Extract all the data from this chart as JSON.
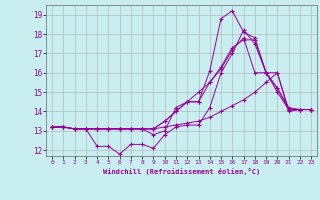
{
  "xlabel": "Windchill (Refroidissement éolien,°C)",
  "bg_color": "#c8eef0",
  "line_color": "#990099",
  "grid_color": "#b0b0b0",
  "xlim": [
    -0.5,
    23.5
  ],
  "ylim": [
    11.7,
    19.5
  ],
  "xticks": [
    0,
    1,
    2,
    3,
    4,
    5,
    6,
    7,
    8,
    9,
    10,
    11,
    12,
    13,
    14,
    15,
    16,
    17,
    18,
    19,
    20,
    21,
    22,
    23
  ],
  "yticks": [
    12,
    13,
    14,
    15,
    16,
    17,
    18,
    19
  ],
  "lines": [
    {
      "x": [
        0,
        1,
        2,
        3,
        4,
        5,
        6,
        7,
        8,
        9,
        10,
        11,
        12,
        13,
        14,
        15,
        16,
        17,
        18,
        19,
        20,
        21,
        22,
        23
      ],
      "y": [
        13.2,
        13.2,
        13.1,
        13.1,
        13.1,
        13.1,
        13.1,
        13.1,
        13.1,
        12.8,
        13.0,
        14.2,
        14.5,
        14.5,
        16.1,
        18.8,
        19.2,
        18.1,
        17.8,
        16.0,
        15.2,
        14.1,
        14.1,
        14.1
      ]
    },
    {
      "x": [
        0,
        1,
        2,
        3,
        4,
        5,
        6,
        7,
        8,
        9,
        10,
        11,
        12,
        13,
        14,
        15,
        16,
        17,
        18,
        19,
        20,
        21,
        22,
        23
      ],
      "y": [
        13.2,
        13.2,
        13.1,
        13.1,
        13.1,
        13.1,
        13.1,
        13.1,
        13.1,
        13.1,
        13.5,
        14.0,
        14.5,
        15.0,
        15.5,
        16.3,
        17.3,
        17.7,
        17.7,
        16.0,
        15.0,
        14.1,
        14.1,
        14.1
      ]
    },
    {
      "x": [
        0,
        1,
        2,
        3,
        4,
        5,
        6,
        7,
        8,
        9,
        10,
        11,
        12,
        13,
        14,
        15,
        16,
        17,
        18,
        19,
        20,
        21,
        22,
        23
      ],
      "y": [
        13.2,
        13.2,
        13.1,
        13.1,
        13.1,
        13.1,
        13.1,
        13.1,
        13.1,
        13.1,
        13.5,
        14.0,
        14.5,
        14.5,
        15.5,
        16.2,
        17.2,
        17.8,
        16.0,
        16.0,
        16.0,
        14.1,
        14.1,
        14.1
      ]
    },
    {
      "x": [
        0,
        1,
        2,
        3,
        4,
        5,
        6,
        7,
        8,
        9,
        10,
        11,
        12,
        13,
        14,
        15,
        16,
        17,
        18,
        19,
        20,
        21,
        22,
        23
      ],
      "y": [
        13.2,
        13.2,
        13.1,
        13.1,
        12.2,
        12.2,
        11.8,
        12.3,
        12.3,
        12.1,
        12.8,
        13.2,
        13.3,
        13.3,
        14.2,
        16.0,
        17.0,
        18.2,
        17.5,
        16.0,
        15.2,
        14.2,
        14.1,
        14.1
      ]
    },
    {
      "x": [
        0,
        1,
        2,
        3,
        4,
        5,
        6,
        7,
        8,
        9,
        10,
        11,
        12,
        13,
        14,
        15,
        16,
        17,
        18,
        19,
        20,
        21,
        22,
        23
      ],
      "y": [
        13.2,
        13.2,
        13.1,
        13.1,
        13.1,
        13.1,
        13.1,
        13.1,
        13.1,
        13.1,
        13.2,
        13.3,
        13.4,
        13.5,
        13.7,
        14.0,
        14.3,
        14.6,
        15.0,
        15.5,
        16.0,
        14.0,
        14.1,
        14.1
      ]
    }
  ]
}
